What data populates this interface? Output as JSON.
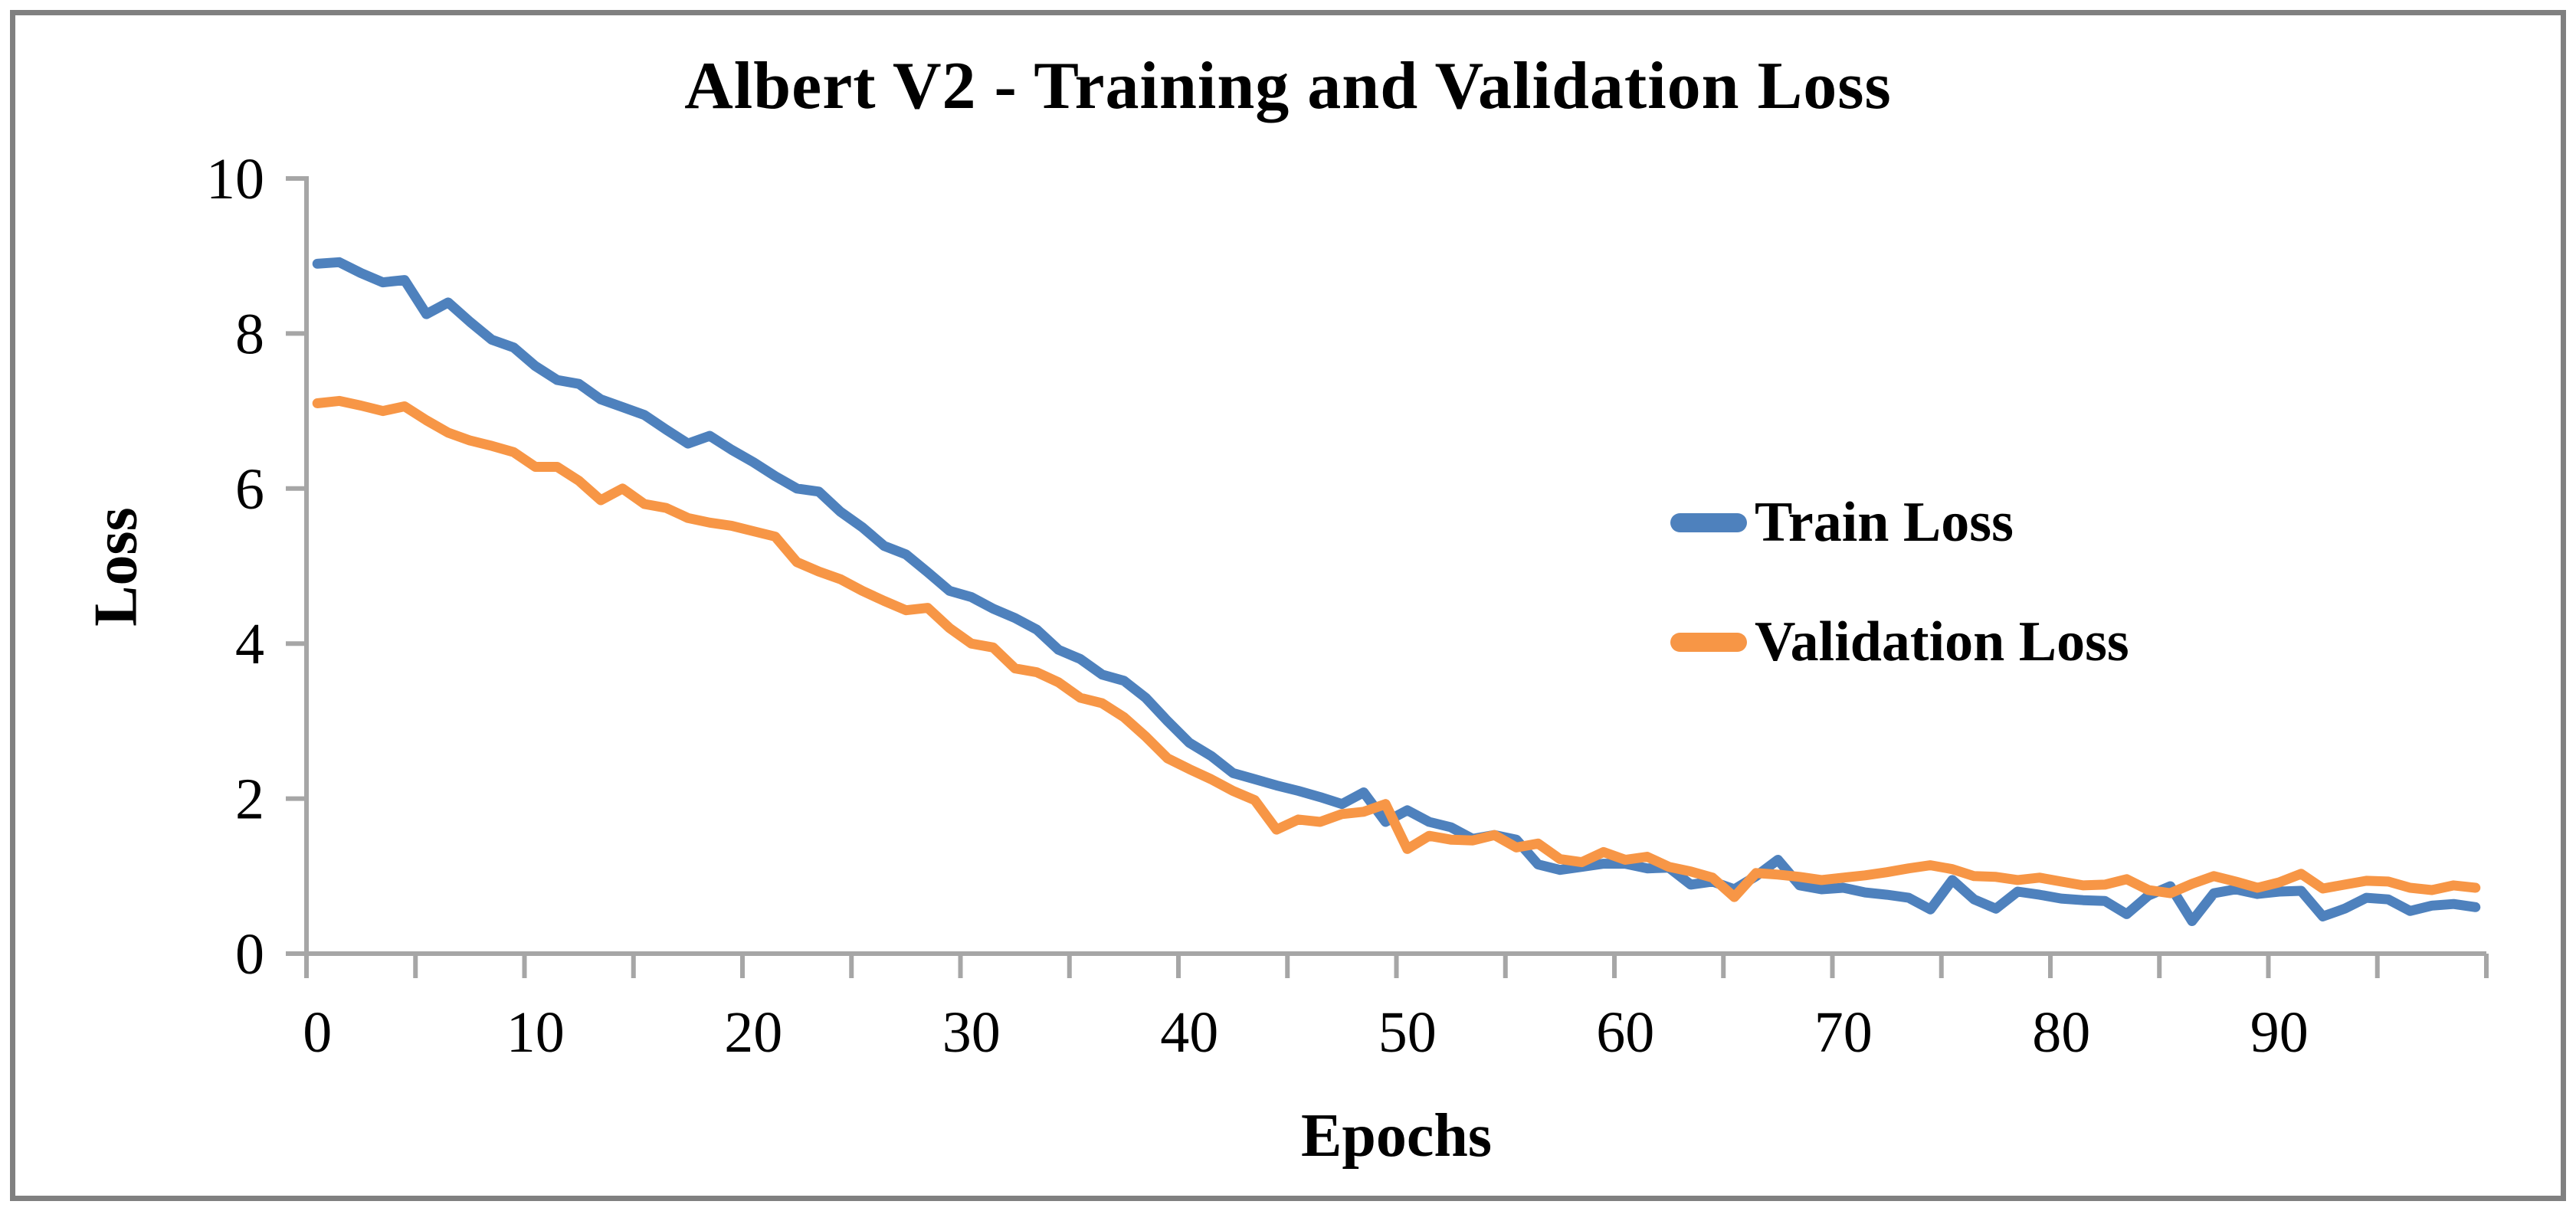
{
  "title": "Albert V2 - Training and Validation Loss",
  "y_axis_title": "Loss",
  "x_axis_title": "Epochs",
  "legend": {
    "position": "center-right",
    "items": [
      {
        "label": "Train Loss",
        "color": "#4E81BD"
      },
      {
        "label": "Validation Loss",
        "color": "#F79646"
      }
    ]
  },
  "colors": {
    "train": "#4E81BD",
    "validation": "#F79646",
    "axis": "#A6A6A6",
    "text": "#000000",
    "frame_border": "#808080",
    "background": "#FFFFFF"
  },
  "chart_data": {
    "type": "line",
    "title": "Albert V2 - Training and Validation Loss",
    "xlabel": "Epochs",
    "ylabel": "Loss",
    "xlim": [
      0,
      100
    ],
    "ylim": [
      0,
      10
    ],
    "x_description": "epoch index 0-99, step 1",
    "x_tick_labels": [
      0,
      10,
      20,
      30,
      40,
      50,
      60,
      70,
      80,
      90
    ],
    "x_minor_tick_step": 5,
    "y_ticks": [
      0,
      2,
      4,
      6,
      8,
      10
    ],
    "grid": false,
    "legend_position": "center-right",
    "series": [
      {
        "name": "Train Loss",
        "color": "#4E81BD",
        "values": [
          8.9,
          8.92,
          8.78,
          8.66,
          8.69,
          8.25,
          8.4,
          8.15,
          7.92,
          7.82,
          7.58,
          7.4,
          7.35,
          7.15,
          7.05,
          6.95,
          6.76,
          6.58,
          6.68,
          6.5,
          6.34,
          6.16,
          6.0,
          5.96,
          5.7,
          5.5,
          5.26,
          5.15,
          4.92,
          4.68,
          4.6,
          4.45,
          4.33,
          4.18,
          3.92,
          3.8,
          3.6,
          3.52,
          3.3,
          3.0,
          2.72,
          2.55,
          2.33,
          2.25,
          2.17,
          2.1,
          2.02,
          1.93,
          2.08,
          1.7,
          1.85,
          1.7,
          1.63,
          1.48,
          1.53,
          1.47,
          1.15,
          1.08,
          1.12,
          1.16,
          1.16,
          1.1,
          1.11,
          0.89,
          0.93,
          0.83,
          1.0,
          1.21,
          0.88,
          0.83,
          0.85,
          0.79,
          0.76,
          0.72,
          0.57,
          0.95,
          0.7,
          0.58,
          0.8,
          0.76,
          0.71,
          0.69,
          0.68,
          0.51,
          0.75,
          0.87,
          0.42,
          0.78,
          0.83,
          0.77,
          0.8,
          0.81,
          0.48,
          0.58,
          0.72,
          0.7,
          0.55,
          0.62,
          0.64,
          0.6
        ]
      },
      {
        "name": "Validation Loss",
        "color": "#F79646",
        "values": [
          7.1,
          7.13,
          7.07,
          7.0,
          7.06,
          6.88,
          6.72,
          6.62,
          6.55,
          6.47,
          6.28,
          6.28,
          6.1,
          5.85,
          6.0,
          5.8,
          5.75,
          5.62,
          5.56,
          5.52,
          5.45,
          5.38,
          5.05,
          4.93,
          4.83,
          4.68,
          4.55,
          4.43,
          4.46,
          4.2,
          4.0,
          3.95,
          3.68,
          3.63,
          3.5,
          3.3,
          3.23,
          3.05,
          2.8,
          2.52,
          2.38,
          2.25,
          2.1,
          1.98,
          1.6,
          1.73,
          1.7,
          1.8,
          1.83,
          1.93,
          1.35,
          1.52,
          1.47,
          1.46,
          1.53,
          1.37,
          1.42,
          1.22,
          1.18,
          1.31,
          1.21,
          1.25,
          1.12,
          1.06,
          0.98,
          0.73,
          1.04,
          1.02,
          0.99,
          0.95,
          0.98,
          1.01,
          1.05,
          1.1,
          1.14,
          1.09,
          1.0,
          0.99,
          0.95,
          0.98,
          0.93,
          0.88,
          0.89,
          0.96,
          0.82,
          0.78,
          0.9,
          1.0,
          0.93,
          0.85,
          0.92,
          1.03,
          0.84,
          0.89,
          0.94,
          0.93,
          0.85,
          0.82,
          0.88,
          0.85
        ]
      }
    ]
  }
}
